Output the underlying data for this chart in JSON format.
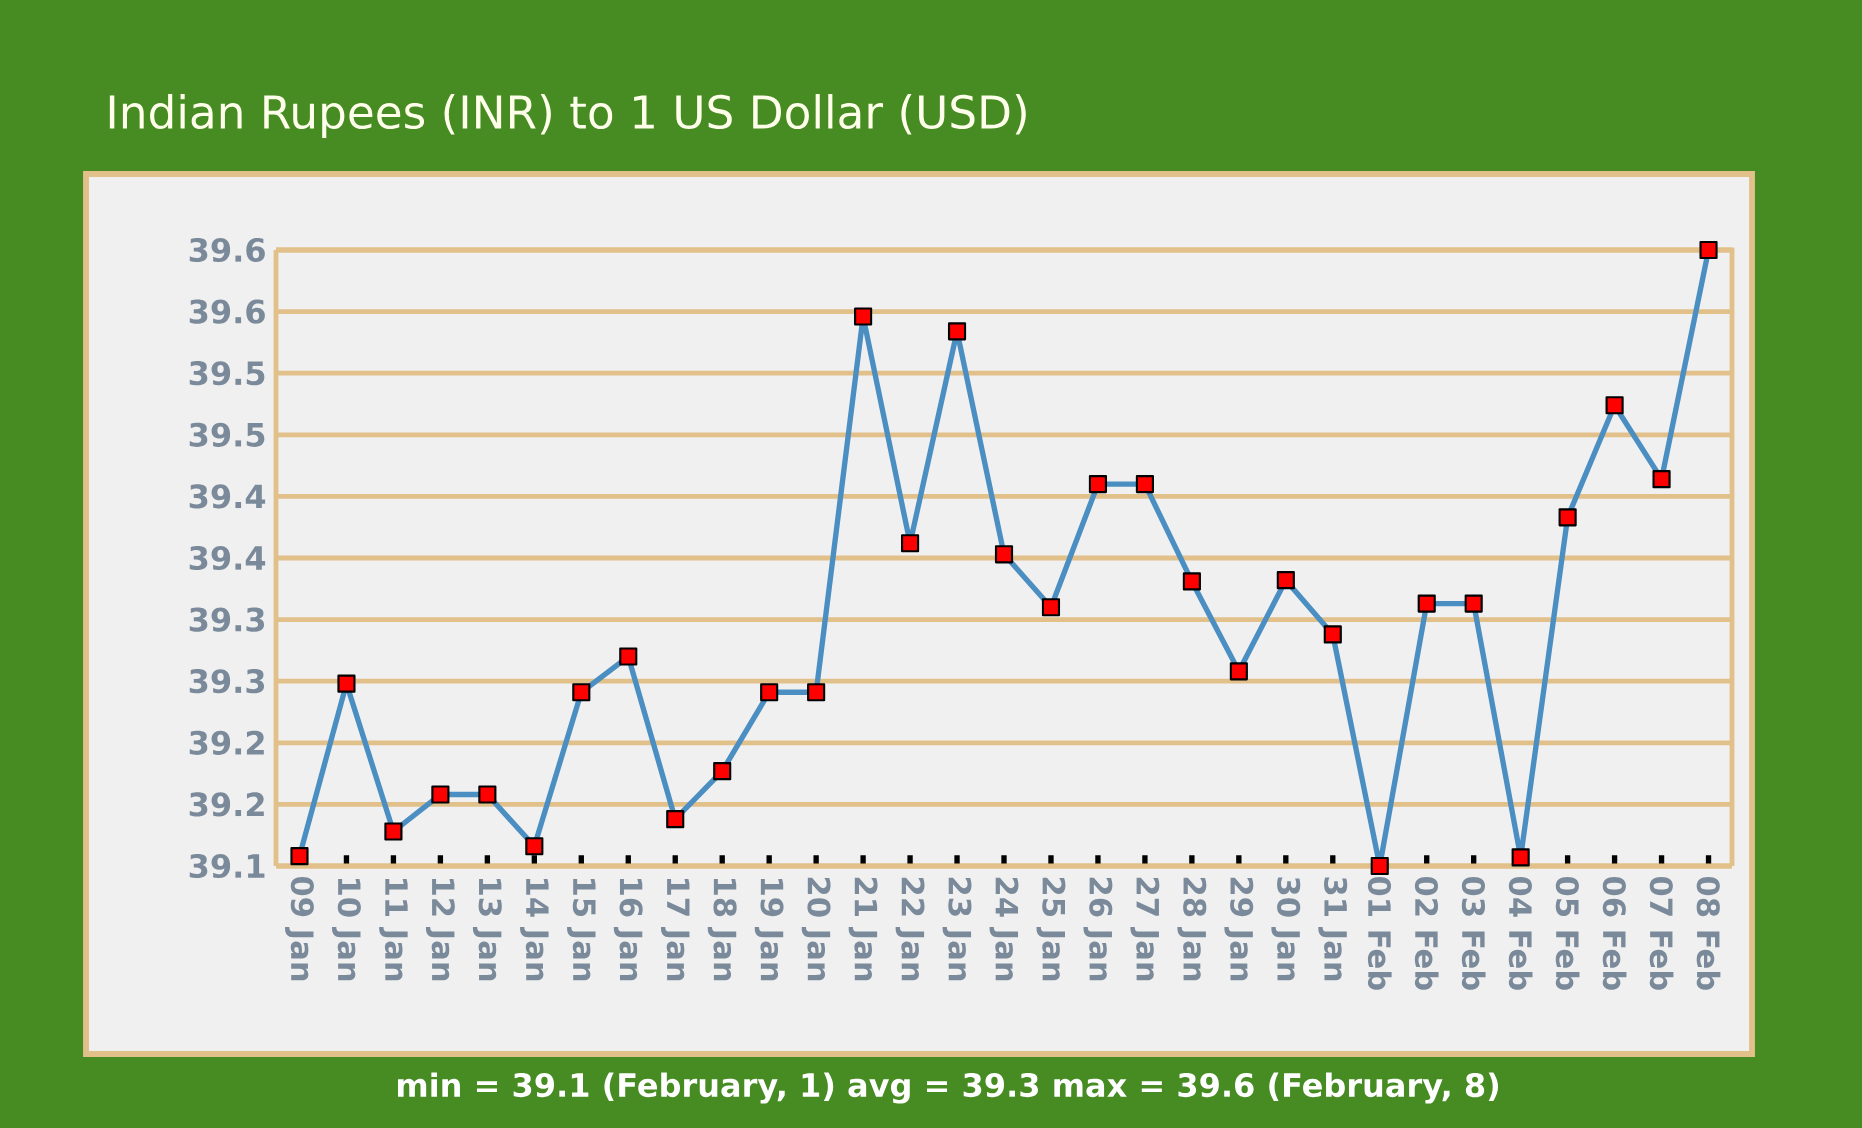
{
  "chart_data": {
    "type": "line",
    "title": "Indian Rupees (INR) to 1 US Dollar (USD)",
    "categories": [
      "09 Jan",
      "10 Jan",
      "11 Jan",
      "12 Jan",
      "13 Jan",
      "14 Jan",
      "15 Jan",
      "16 Jan",
      "17 Jan",
      "18 Jan",
      "19 Jan",
      "20 Jan",
      "21 Jan",
      "22 Jan",
      "23 Jan",
      "24 Jan",
      "25 Jan",
      "26 Jan",
      "27 Jan",
      "28 Jan",
      "29 Jan",
      "30 Jan",
      "31 Jan",
      "01 Feb",
      "02 Feb",
      "03 Feb",
      "04 Feb",
      "05 Feb",
      "06 Feb",
      "07 Feb",
      "08 Feb"
    ],
    "series": [
      {
        "color": "#4a8ec2",
        "values": [
          39.108,
          39.248,
          39.128,
          39.158,
          39.158,
          39.116,
          39.241,
          39.27,
          39.138,
          39.177,
          39.241,
          39.241,
          39.546,
          39.362,
          39.534,
          39.353,
          39.31,
          39.41,
          39.41,
          39.331,
          39.258,
          39.332,
          39.288,
          39.1,
          39.313,
          39.313,
          39.107,
          39.383,
          39.474,
          39.414,
          39.6
        ]
      }
    ],
    "ylim": [
      39.1,
      39.6
    ],
    "yticks": [
      {
        "value": 39.1,
        "label": "39.1"
      },
      {
        "value": 39.15,
        "label": "39.2"
      },
      {
        "value": 39.2,
        "label": "39.2"
      },
      {
        "value": 39.25,
        "label": "39.3"
      },
      {
        "value": 39.3,
        "label": "39.3"
      },
      {
        "value": 39.35,
        "label": "39.4"
      },
      {
        "value": 39.4,
        "label": "39.4"
      },
      {
        "value": 39.45,
        "label": "39.5"
      },
      {
        "value": 39.5,
        "label": "39.5"
      },
      {
        "value": 39.55,
        "label": "39.6"
      },
      {
        "value": 39.6,
        "label": "39.6"
      }
    ],
    "grid": "y",
    "marker": "square",
    "line_style": "solid",
    "annotations": [
      "min = 39.1 (February, 1) avg = 39.3  max = 39.6 (February, 8)"
    ]
  }
}
